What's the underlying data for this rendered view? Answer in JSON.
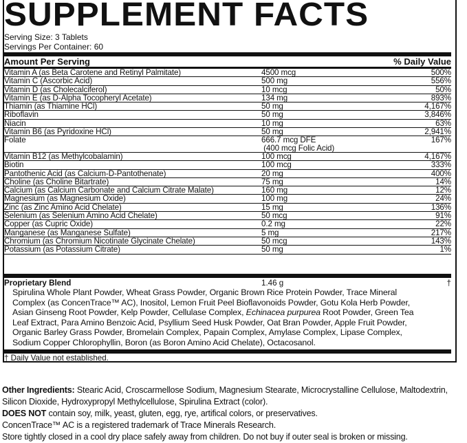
{
  "title": "SUPPLEMENT FACTS",
  "serving_size": "Serving Size: 3 Tablets",
  "servings_per_container": "Servings Per Container: 60",
  "header": {
    "amount": "Amount Per Serving",
    "dv": "% Daily Value"
  },
  "nutrients": [
    {
      "name": "Vitamin A (as Beta Carotene and Retinyl Palmitate)",
      "amount": "4500 mcg",
      "dv": "500%"
    },
    {
      "name": "Vitamin C (Ascorbic Acid)",
      "amount": "500 mg",
      "dv": "556%"
    },
    {
      "name": "Vitamin D (as Cholecalciferol)",
      "amount": "10 mcg",
      "dv": "50%"
    },
    {
      "name": "Vitamin E (as D-Alpha Tocopheryl Acetate)",
      "amount": "134 mg",
      "dv": "893%"
    },
    {
      "name": "Thiamin (as Thiamine HCl)",
      "amount": "50 mg",
      "dv": "4,167%"
    },
    {
      "name": "Riboflavin",
      "amount": "50 mg",
      "dv": "3,846%"
    },
    {
      "name": "Niacin",
      "amount": "10 mg",
      "dv": "63%"
    },
    {
      "name": "Vitamin B6 (as Pyridoxine HCl)",
      "amount": "50 mg",
      "dv": "2,941%"
    },
    {
      "name": "Folate",
      "amount": "666.7 mcg DFE",
      "amount2": "(400 mcg Folic Acid)",
      "dv": "167%"
    },
    {
      "name": "Vitamin B12 (as Methylcobalamin)",
      "amount": "100 mcg",
      "dv": "4,167%"
    },
    {
      "name": "Biotin",
      "amount": "100 mcg",
      "dv": "333%"
    },
    {
      "name": "Pantothenic Acid (as Calcium-D-Pantothenate)",
      "amount": "20 mg",
      "dv": "400%"
    },
    {
      "name": "Choline (as Choline Bitartrate)",
      "amount": "75 mg",
      "dv": "14%"
    },
    {
      "name": "Calcium (as Calcium Carbonate and Calcium Citrate Malate)",
      "amount": "160 mg",
      "dv": "12%"
    },
    {
      "name": "Magnesium (as Magnesium Oxide)",
      "amount": "100 mg",
      "dv": "24%"
    },
    {
      "name": "Zinc (as Zinc Amino Acid Chelate)",
      "amount": "15 mg",
      "dv": "136%"
    },
    {
      "name": "Selenium (as Selenium Amino Acid Chelate)",
      "amount": "50 mcg",
      "dv": "91%"
    },
    {
      "name": "Copper (as Cupric Oxide)",
      "amount": "0.2 mg",
      "dv": "22%"
    },
    {
      "name": "Manganese (as Manganese Sulfate)",
      "amount": "5 mg",
      "dv": "217%"
    },
    {
      "name": "Chromium (as Chromium Nicotinate Glycinate Chelate)",
      "amount": "50 mcg",
      "dv": "143%"
    },
    {
      "name": "Potassium (as Potassium Citrate)",
      "amount": "50 mg",
      "dv": "1%"
    }
  ],
  "blend": {
    "name": "Proprietary Blend",
    "amount": "1.46 g",
    "dv": "†",
    "text_a": "Spirulina Whole Plant Powder, Wheat Grass Powder, Organic Brown Rice Protein Powder, Trace Mineral Complex (as ConcenTrace™ AC), Inositol, Lemon Fruit Peel Bioflavonoids Powder, Gotu Kola Herb Powder, Asian Ginseng Root Powder, Kelp Powder, Cellulase Complex, ",
    "text_italic": "Echinacea purpurea",
    "text_b": " Root Powder, Green Tea Leaf Extract, Para Amino Benzoic Acid, Psyllium Seed Husk Powder, Oat Bran Powder, Apple Fruit Powder, Organic Barley Grass Powder, Bromelain Complex, Papain Complex, Amylase Complex, Lipase Complex, Sodium Copper Chlorophyllin, Boron (as Boron Amino Acid Chelate), Octacosanol."
  },
  "footnote": "† Daily Value not established.",
  "other": {
    "label": "Other Ingredients:",
    "text": " Stearic Acid, Croscarmellose Sodium, Magnesium Stearate, Microcrystalline Cellulose, Maltodextrin, Silicon Dioxide, Hydroxypropyl Methylcellulose, Spirulina Extract (color).",
    "does_not_label": "DOES NOT",
    "does_not_text": " contain soy, milk, yeast, gluten, egg, rye, artifical colors, or preservatives.",
    "trademark": "ConcenTrace™ AC is a registered trademark of Trace Minerals Research.",
    "storage": "Store tightly closed in a cool dry place safely away from children. Do not buy if outer seal is broken or missing."
  }
}
